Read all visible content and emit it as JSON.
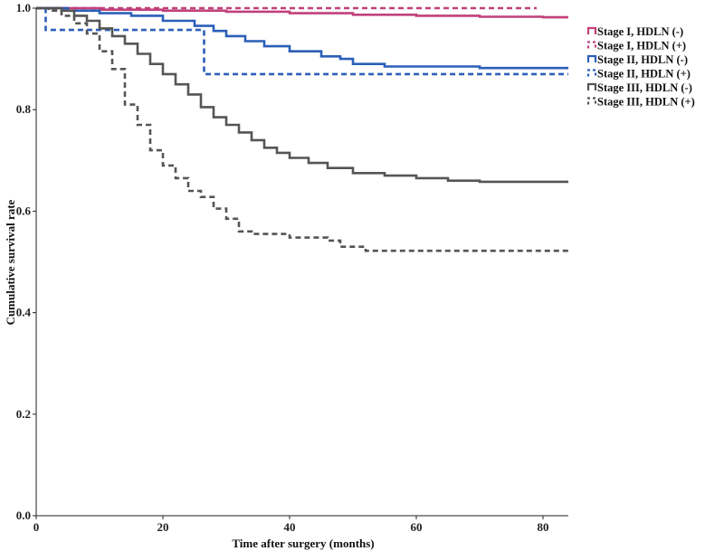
{
  "chart_data": {
    "type": "line",
    "title": "",
    "xlabel": "Time after surgery (months)",
    "ylabel": "Cumulative survival rate",
    "xlim": [
      0,
      84
    ],
    "ylim": [
      0.0,
      1.0
    ],
    "x_ticks": [
      0,
      20,
      40,
      60,
      80
    ],
    "y_ticks": [
      0.0,
      0.2,
      0.4,
      0.6,
      0.8,
      1.0
    ],
    "x_tick_labels": [
      "0",
      "20",
      "40",
      "60",
      "80"
    ],
    "y_tick_labels": [
      "0.0",
      "0.2",
      "0.4",
      "0.6",
      "0.8",
      "1.0"
    ],
    "grid": false,
    "legend_position": "right",
    "step": true,
    "series": [
      {
        "name": "Stage I, HDLN (-)",
        "color": "#c0407a",
        "dash": "solid",
        "points": [
          [
            0,
            1.0
          ],
          [
            10,
            0.997
          ],
          [
            20,
            0.995
          ],
          [
            30,
            0.993
          ],
          [
            40,
            0.99
          ],
          [
            50,
            0.987
          ],
          [
            60,
            0.985
          ],
          [
            70,
            0.983
          ],
          [
            80,
            0.982
          ],
          [
            84,
            0.982
          ]
        ]
      },
      {
        "name": "Stage I, HDLN (+)",
        "color": "#c0407a",
        "dash": "dashed",
        "points": [
          [
            0,
            1.0
          ],
          [
            79,
            1.0
          ]
        ]
      },
      {
        "name": "Stage II, HDLN (-)",
        "color": "#2b5fb8",
        "dash": "solid",
        "points": [
          [
            0,
            1.0
          ],
          [
            5,
            0.995
          ],
          [
            10,
            0.99
          ],
          [
            15,
            0.985
          ],
          [
            20,
            0.975
          ],
          [
            25,
            0.965
          ],
          [
            28,
            0.955
          ],
          [
            30,
            0.945
          ],
          [
            33,
            0.935
          ],
          [
            36,
            0.925
          ],
          [
            40,
            0.915
          ],
          [
            45,
            0.905
          ],
          [
            48,
            0.9
          ],
          [
            50,
            0.89
          ],
          [
            55,
            0.885
          ],
          [
            60,
            0.885
          ],
          [
            70,
            0.882
          ],
          [
            84,
            0.882
          ]
        ]
      },
      {
        "name": "Stage II, HDLN (+)",
        "color": "#2b5fb8",
        "dash": "dashed",
        "points": [
          [
            0,
            1.0
          ],
          [
            1.5,
            1.0
          ],
          [
            1.5,
            0.957
          ],
          [
            26.5,
            0.957
          ],
          [
            26.5,
            0.87
          ],
          [
            84,
            0.87
          ]
        ]
      },
      {
        "name": "Stage III, HDLN (-)",
        "color": "#555555",
        "dash": "solid",
        "points": [
          [
            0,
            1.0
          ],
          [
            2,
            1.0
          ],
          [
            4,
            0.995
          ],
          [
            6,
            0.985
          ],
          [
            8,
            0.975
          ],
          [
            10,
            0.96
          ],
          [
            12,
            0.945
          ],
          [
            14,
            0.93
          ],
          [
            16,
            0.91
          ],
          [
            18,
            0.89
          ],
          [
            20,
            0.87
          ],
          [
            22,
            0.85
          ],
          [
            24,
            0.83
          ],
          [
            26,
            0.805
          ],
          [
            28,
            0.785
          ],
          [
            30,
            0.77
          ],
          [
            32,
            0.755
          ],
          [
            34,
            0.74
          ],
          [
            36,
            0.725
          ],
          [
            38,
            0.715
          ],
          [
            40,
            0.705
          ],
          [
            43,
            0.695
          ],
          [
            46,
            0.685
          ],
          [
            50,
            0.675
          ],
          [
            55,
            0.67
          ],
          [
            60,
            0.665
          ],
          [
            65,
            0.66
          ],
          [
            70,
            0.658
          ],
          [
            84,
            0.658
          ]
        ]
      },
      {
        "name": "Stage III, HDLN (+)",
        "color": "#555555",
        "dash": "dashed",
        "points": [
          [
            0,
            1.0
          ],
          [
            2,
            0.995
          ],
          [
            4,
            0.985
          ],
          [
            6,
            0.97
          ],
          [
            8,
            0.95
          ],
          [
            10,
            0.915
          ],
          [
            12,
            0.88
          ],
          [
            14,
            0.81
          ],
          [
            16,
            0.77
          ],
          [
            18,
            0.72
          ],
          [
            20,
            0.69
          ],
          [
            22,
            0.665
          ],
          [
            24,
            0.64
          ],
          [
            26,
            0.628
          ],
          [
            28,
            0.605
          ],
          [
            30,
            0.585
          ],
          [
            32,
            0.56
          ],
          [
            34,
            0.555
          ],
          [
            40,
            0.548
          ],
          [
            46,
            0.542
          ],
          [
            48,
            0.53
          ],
          [
            52,
            0.522
          ],
          [
            60,
            0.522
          ],
          [
            84,
            0.522
          ]
        ]
      }
    ]
  }
}
